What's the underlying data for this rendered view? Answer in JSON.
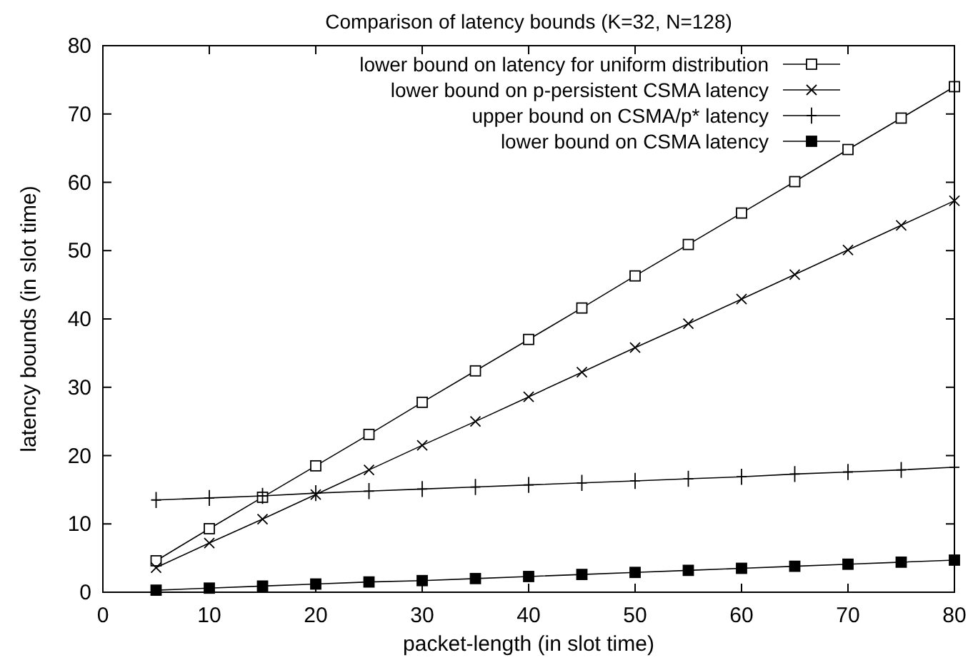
{
  "chart_data": {
    "type": "line",
    "title": "Comparison of latency bounds (K=32, N=128)",
    "xlabel": "packet-length (in slot time)",
    "ylabel": "latency bounds (in slot time)",
    "x": [
      5,
      10,
      15,
      20,
      25,
      30,
      35,
      40,
      45,
      50,
      55,
      60,
      65,
      70,
      75,
      80
    ],
    "xlim": [
      0,
      80
    ],
    "xticks": [
      0,
      10,
      20,
      30,
      40,
      50,
      60,
      70,
      80
    ],
    "ylim": [
      0,
      80
    ],
    "yticks": [
      0,
      10,
      20,
      30,
      40,
      50,
      60,
      70,
      80
    ],
    "legend": "top",
    "grid": false,
    "line_style": "solid",
    "series": [
      {
        "name": "lower bound on latency for uniform distribution",
        "color": "#000000",
        "marker": "square",
        "values": [
          4.6,
          9.3,
          13.9,
          18.5,
          23.1,
          27.8,
          32.4,
          37,
          41.6,
          46.3,
          50.9,
          55.5,
          60.1,
          64.8,
          69.4,
          74
        ]
      },
      {
        "name": "lower bound on p-persistent CSMA latency",
        "color": "#000000",
        "marker": "cross",
        "values": [
          3.6,
          7.2,
          10.7,
          14.3,
          17.9,
          21.5,
          25,
          28.6,
          32.2,
          35.8,
          39.3,
          42.9,
          46.5,
          50.1,
          53.7,
          57.3
        ]
      },
      {
        "name": "upper bound on CSMA/p* latency",
        "color": "#000000",
        "marker": "plus",
        "values": [
          13.5,
          13.8,
          14.1,
          14.5,
          14.8,
          15.1,
          15.4,
          15.7,
          16,
          16.3,
          16.6,
          16.9,
          17.3,
          17.6,
          17.9,
          18.3
        ]
      },
      {
        "name": "lower bound on CSMA latency",
        "color": "#000000",
        "marker": "square",
        "values": [
          0.3,
          0.6,
          0.9,
          1.2,
          1.5,
          1.7,
          2,
          2.3,
          2.6,
          2.9,
          3.2,
          3.5,
          3.8,
          4.1,
          4.4,
          4.7
        ]
      }
    ]
  }
}
